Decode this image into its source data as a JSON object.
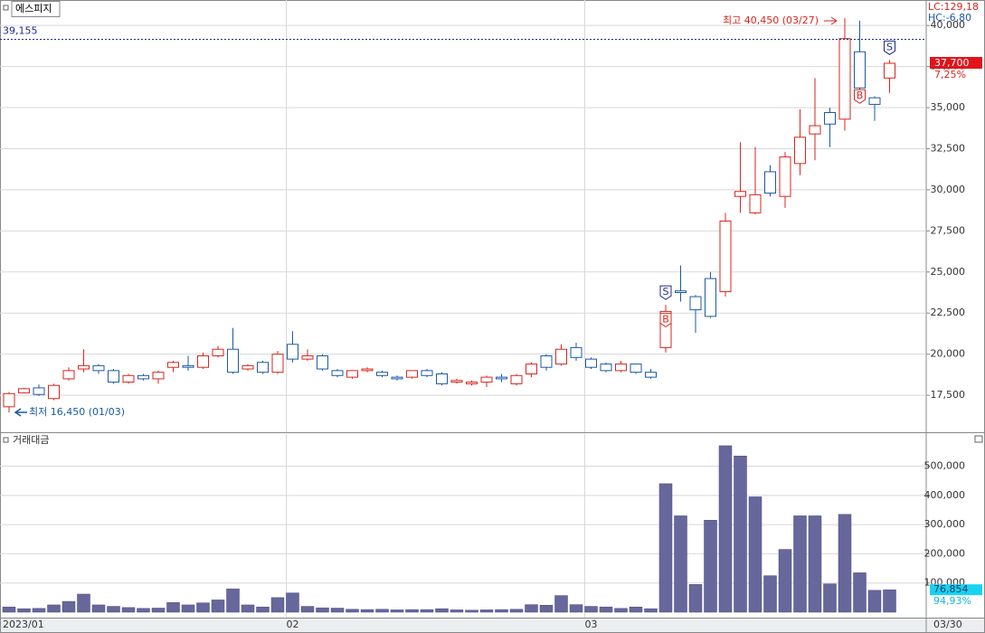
{
  "chart_data": [
    {
      "type": "candlestick",
      "title": "에스피지",
      "open": [
        16800,
        17650,
        17950,
        17300,
        18500,
        19100,
        19300,
        19000,
        18300,
        18700,
        18500,
        19200,
        19300,
        19200,
        19900,
        20300,
        19100,
        19500,
        18900,
        20600,
        19700,
        19900,
        19000,
        18600,
        19000,
        18900,
        18600,
        18600,
        19000,
        18800,
        18300,
        18200,
        18300,
        18600,
        18200,
        18800,
        19900,
        19400,
        20400,
        19700,
        19400,
        19000,
        19400,
        18900,
        20400,
        23850,
        23500,
        24600,
        23800,
        29600,
        28600,
        31100,
        29600,
        31600,
        33400,
        34700,
        34300,
        38400,
        35600,
        36800
      ],
      "high": [
        17700,
        17950,
        18150,
        18200,
        19200,
        20300,
        19400,
        19100,
        18800,
        18800,
        19000,
        19600,
        19900,
        20100,
        20500,
        21600,
        19400,
        19600,
        20200,
        21400,
        20300,
        20000,
        19100,
        19000,
        19200,
        19000,
        18700,
        19000,
        19100,
        18900,
        18500,
        18400,
        18700,
        18800,
        18800,
        19500,
        20000,
        20600,
        20700,
        19800,
        19500,
        19600,
        19400,
        19100,
        23000,
        25400,
        23600,
        25000,
        28600,
        32900,
        32600,
        31500,
        32300,
        34900,
        36800,
        35000,
        40450,
        40300,
        35700,
        37900
      ],
      "low": [
        16450,
        17600,
        17450,
        17200,
        18400,
        18900,
        18800,
        18200,
        18200,
        18400,
        18200,
        18900,
        19000,
        19100,
        19800,
        18800,
        19000,
        18800,
        18800,
        19500,
        19600,
        19000,
        18600,
        18500,
        18900,
        18600,
        18400,
        18500,
        18600,
        18100,
        18200,
        18100,
        18000,
        18300,
        18100,
        18600,
        19000,
        19300,
        19600,
        19100,
        18900,
        18900,
        18800,
        18500,
        20100,
        23200,
        21300,
        22200,
        23500,
        28600,
        28500,
        29600,
        28900,
        30900,
        31800,
        32600,
        33600,
        35600,
        34200,
        35900
      ],
      "close": [
        17600,
        17900,
        17550,
        18100,
        19000,
        19300,
        19000,
        18300,
        18700,
        18500,
        18900,
        19500,
        19200,
        19900,
        20300,
        18900,
        19300,
        18900,
        20000,
        19700,
        19900,
        19100,
        18700,
        19000,
        19100,
        18700,
        18500,
        19000,
        18700,
        18200,
        18400,
        18300,
        18600,
        18500,
        18700,
        19400,
        19200,
        20300,
        19800,
        19200,
        19000,
        19400,
        18900,
        18600,
        22600,
        23750,
        22700,
        22300,
        28100,
        29900,
        29700,
        29800,
        32000,
        33200,
        33900,
        34000,
        39200,
        36200,
        35200,
        37700
      ],
      "up_color": "#d7261e",
      "down_color": "#1a5aa6",
      "ylim": [
        15250,
        41550
      ],
      "yticks": [
        {
          "value": 17500,
          "label": "17,500"
        },
        {
          "value": 20000,
          "label": "20,000"
        },
        {
          "value": 22500,
          "label": "22,500"
        },
        {
          "value": 25000,
          "label": "25,000"
        },
        {
          "value": 27500,
          "label": "27,500"
        },
        {
          "value": 30000,
          "label": "30,000"
        },
        {
          "value": 32500,
          "label": "32,500"
        },
        {
          "value": 35000,
          "label": "35,000"
        },
        {
          "value": 37500,
          "label": "37,500"
        },
        {
          "value": 40000,
          "label": "40,000"
        }
      ],
      "grid": true,
      "reference_line": {
        "value": 39155,
        "label": "39,155"
      },
      "high_annotation": "최고 40,450 (03/27)",
      "low_annotation": "최저 16,450 (01/03)",
      "signals": [
        {
          "label": "S",
          "at": 44
        },
        {
          "label": "B",
          "at": 44
        },
        {
          "label": "B",
          "at": 57
        },
        {
          "label": "S",
          "at": 59
        }
      ],
      "last_price": {
        "value": 37700,
        "label": "37,700"
      },
      "change": "7,25%",
      "lc": "LC:129,18",
      "hc": "HC:-6,80"
    },
    {
      "type": "bar",
      "title": "거래대금",
      "categories": [
        "2023/01",
        null,
        null,
        null,
        null,
        null,
        null,
        null,
        null,
        null,
        null,
        null,
        null,
        null,
        null,
        null,
        null,
        null,
        null,
        "02",
        null,
        null,
        null,
        null,
        null,
        null,
        null,
        null,
        null,
        null,
        null,
        null,
        null,
        null,
        null,
        null,
        null,
        null,
        null,
        "03",
        null,
        null,
        null,
        null,
        null,
        null,
        null,
        null,
        null,
        null,
        null,
        null,
        null,
        null,
        null,
        null,
        null,
        null,
        null,
        null
      ],
      "values": [
        18000,
        12000,
        13000,
        25000,
        37000,
        62000,
        25000,
        20000,
        16000,
        13000,
        14000,
        33000,
        25000,
        32000,
        42000,
        80000,
        25000,
        18000,
        50000,
        66000,
        20000,
        15000,
        14000,
        10000,
        9000,
        10000,
        8000,
        9000,
        9000,
        12000,
        8000,
        7000,
        8000,
        9000,
        10000,
        26000,
        24000,
        57000,
        26000,
        20000,
        18000,
        13000,
        18000,
        12000,
        440000,
        330000,
        95000,
        315000,
        570000,
        535000,
        395000,
        125000,
        215000,
        330000,
        330000,
        97000,
        335000,
        135000,
        75000,
        76854
      ],
      "color": "#67679c",
      "ylim": [
        0,
        610000
      ],
      "yticks": [
        {
          "value": 100000,
          "label": "100,000"
        },
        {
          "value": 200000,
          "label": "200,000"
        },
        {
          "value": 300000,
          "label": "300,000"
        },
        {
          "value": 400000,
          "label": "400,000"
        },
        {
          "value": 500000,
          "label": "500,000"
        }
      ],
      "grid": true,
      "last_value": {
        "value": 76854,
        "label": "76,854"
      },
      "ratio": "94,93%",
      "cursor_date": "03/30"
    }
  ]
}
